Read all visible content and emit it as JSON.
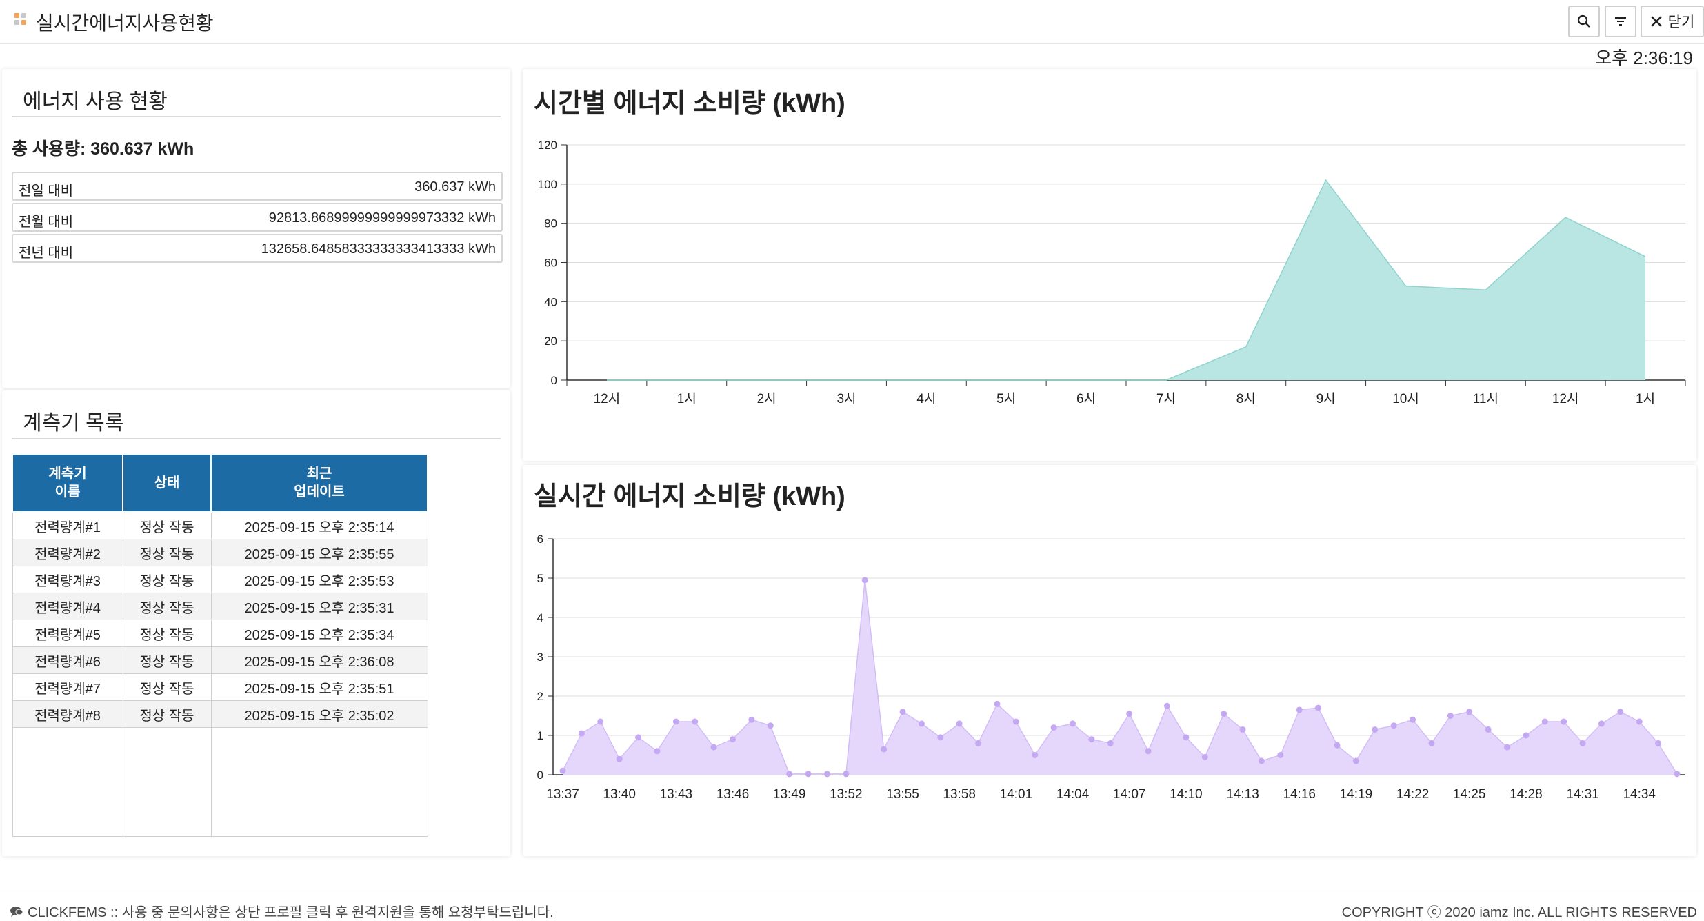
{
  "app": {
    "title": "실시간에너지사용현황",
    "close_label": "닫기",
    "clock": "오후 2:36:19",
    "colors": {
      "accent": "#1c6ba5",
      "area_hourly": "#b9e6e3",
      "area_realtime": "#e5d7fb",
      "point_realtime": "#c4a8f2"
    }
  },
  "energy": {
    "title": "에너지 사용 현황",
    "total": "총 사용량: 360.637 kWh",
    "rows": [
      {
        "label": "전일 대비",
        "value": "360.637 kWh"
      },
      {
        "label": "전월 대비",
        "value": "92813.86899999999999973332 kWh"
      },
      {
        "label": "전년 대비",
        "value": "132658.64858333333333413333 kWh"
      }
    ]
  },
  "meters": {
    "title": "계측기 목록",
    "headers": {
      "name": "계측기\n이름",
      "status": "상태",
      "updated": "최근\n업데이트"
    },
    "rows": [
      {
        "name": "전력량계#1",
        "status": "정상 작동",
        "updated": "2025-09-15 오후 2:35:14"
      },
      {
        "name": "전력량계#2",
        "status": "정상 작동",
        "updated": "2025-09-15 오후 2:35:55"
      },
      {
        "name": "전력량계#3",
        "status": "정상 작동",
        "updated": "2025-09-15 오후 2:35:53"
      },
      {
        "name": "전력량계#4",
        "status": "정상 작동",
        "updated": "2025-09-15 오후 2:35:31"
      },
      {
        "name": "전력량계#5",
        "status": "정상 작동",
        "updated": "2025-09-15 오후 2:35:34"
      },
      {
        "name": "전력량계#6",
        "status": "정상 작동",
        "updated": "2025-09-15 오후 2:36:08"
      },
      {
        "name": "전력량계#7",
        "status": "정상 작동",
        "updated": "2025-09-15 오후 2:35:51"
      },
      {
        "name": "전력량계#8",
        "status": "정상 작동",
        "updated": "2025-09-15 오후 2:35:02"
      }
    ]
  },
  "chart_data": [
    {
      "type": "area",
      "title": "시간별 에너지 소비량 (kWh)",
      "categories": [
        "12시",
        "1시",
        "2시",
        "3시",
        "4시",
        "5시",
        "6시",
        "7시",
        "8시",
        "9시",
        "10시",
        "11시",
        "12시",
        "1시"
      ],
      "values": [
        0,
        0,
        0,
        0,
        0,
        0,
        0,
        0,
        17,
        102,
        48,
        46,
        83,
        63
      ],
      "ylim": [
        0,
        120
      ],
      "yticks": [
        0,
        20,
        40,
        60,
        80,
        100,
        120
      ]
    },
    {
      "type": "area",
      "title": "실시간 에너지 소비량 (kWh)",
      "tick_labels": [
        "13:37",
        "13:40",
        "13:43",
        "13:46",
        "13:49",
        "13:52",
        "13:55",
        "13:58",
        "14:01",
        "14:04",
        "14:07",
        "14:10",
        "14:13",
        "14:16",
        "14:19",
        "14:22",
        "14:25",
        "14:28",
        "14:31",
        "14:34"
      ],
      "ylim": [
        0,
        6
      ],
      "yticks": [
        0,
        1,
        2,
        3,
        4,
        5,
        6
      ],
      "values": [
        0.1,
        1.05,
        1.35,
        0.4,
        0.95,
        0.6,
        1.35,
        1.35,
        0.7,
        0.9,
        1.4,
        1.25,
        0.02,
        0.02,
        0.02,
        0.02,
        4.95,
        0.65,
        1.6,
        1.3,
        0.95,
        1.3,
        0.8,
        1.8,
        1.35,
        0.5,
        1.2,
        1.3,
        0.9,
        0.8,
        1.55,
        0.6,
        1.75,
        0.95,
        0.45,
        1.55,
        1.15,
        0.35,
        0.5,
        1.65,
        1.7,
        0.75,
        0.35,
        1.15,
        1.25,
        1.4,
        0.8,
        1.5,
        1.6,
        1.15,
        0.7,
        1.0,
        1.35,
        1.35,
        0.8,
        1.3,
        1.6,
        1.35,
        0.8,
        0.02
      ]
    }
  ],
  "footer": {
    "left": "CLICKFEMS :: 사용 중 문의사항은 상단 프로필 클릭 후 원격지원을 통해 요청부탁드립니다.",
    "right": "COPYRIGHT ⓒ 2020 iamz Inc. ALL RIGHTS RESERVED"
  }
}
